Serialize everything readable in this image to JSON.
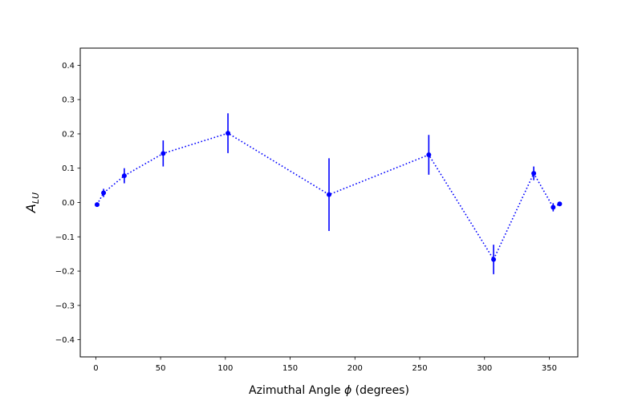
{
  "colors": {
    "series": "#0000ff",
    "axis": "#000000",
    "background": "#ffffff"
  },
  "chart_data": {
    "type": "scatter",
    "title": "",
    "xlabel": {
      "prefix": "Azimuthal Angle ",
      "symbol": "ϕ",
      "suffix": " (degrees)"
    },
    "ylabel": {
      "base": "A",
      "subscript": "LU"
    },
    "xlim": [
      -12,
      372
    ],
    "ylim": [
      -0.45,
      0.45
    ],
    "xticks": [
      "0",
      "50",
      "100",
      "150",
      "200",
      "250",
      "300",
      "350"
    ],
    "yticks": [
      "-0.4",
      "-0.3",
      "-0.2",
      "-0.1",
      "0.0",
      "0.1",
      "0.2",
      "0.3",
      "0.4"
    ],
    "grid": false,
    "series": [
      {
        "marker": "circle",
        "line_style": "dotted",
        "x": [
          1,
          6,
          22,
          52,
          102,
          180,
          257,
          307,
          338,
          353,
          358
        ],
        "y": [
          -0.006,
          0.028,
          0.078,
          0.143,
          0.202,
          0.023,
          0.139,
          -0.166,
          0.085,
          -0.014,
          -0.004
        ],
        "yerr": [
          0.004,
          0.012,
          0.022,
          0.038,
          0.058,
          0.106,
          0.058,
          0.043,
          0.02,
          0.012,
          0.004
        ]
      }
    ]
  }
}
